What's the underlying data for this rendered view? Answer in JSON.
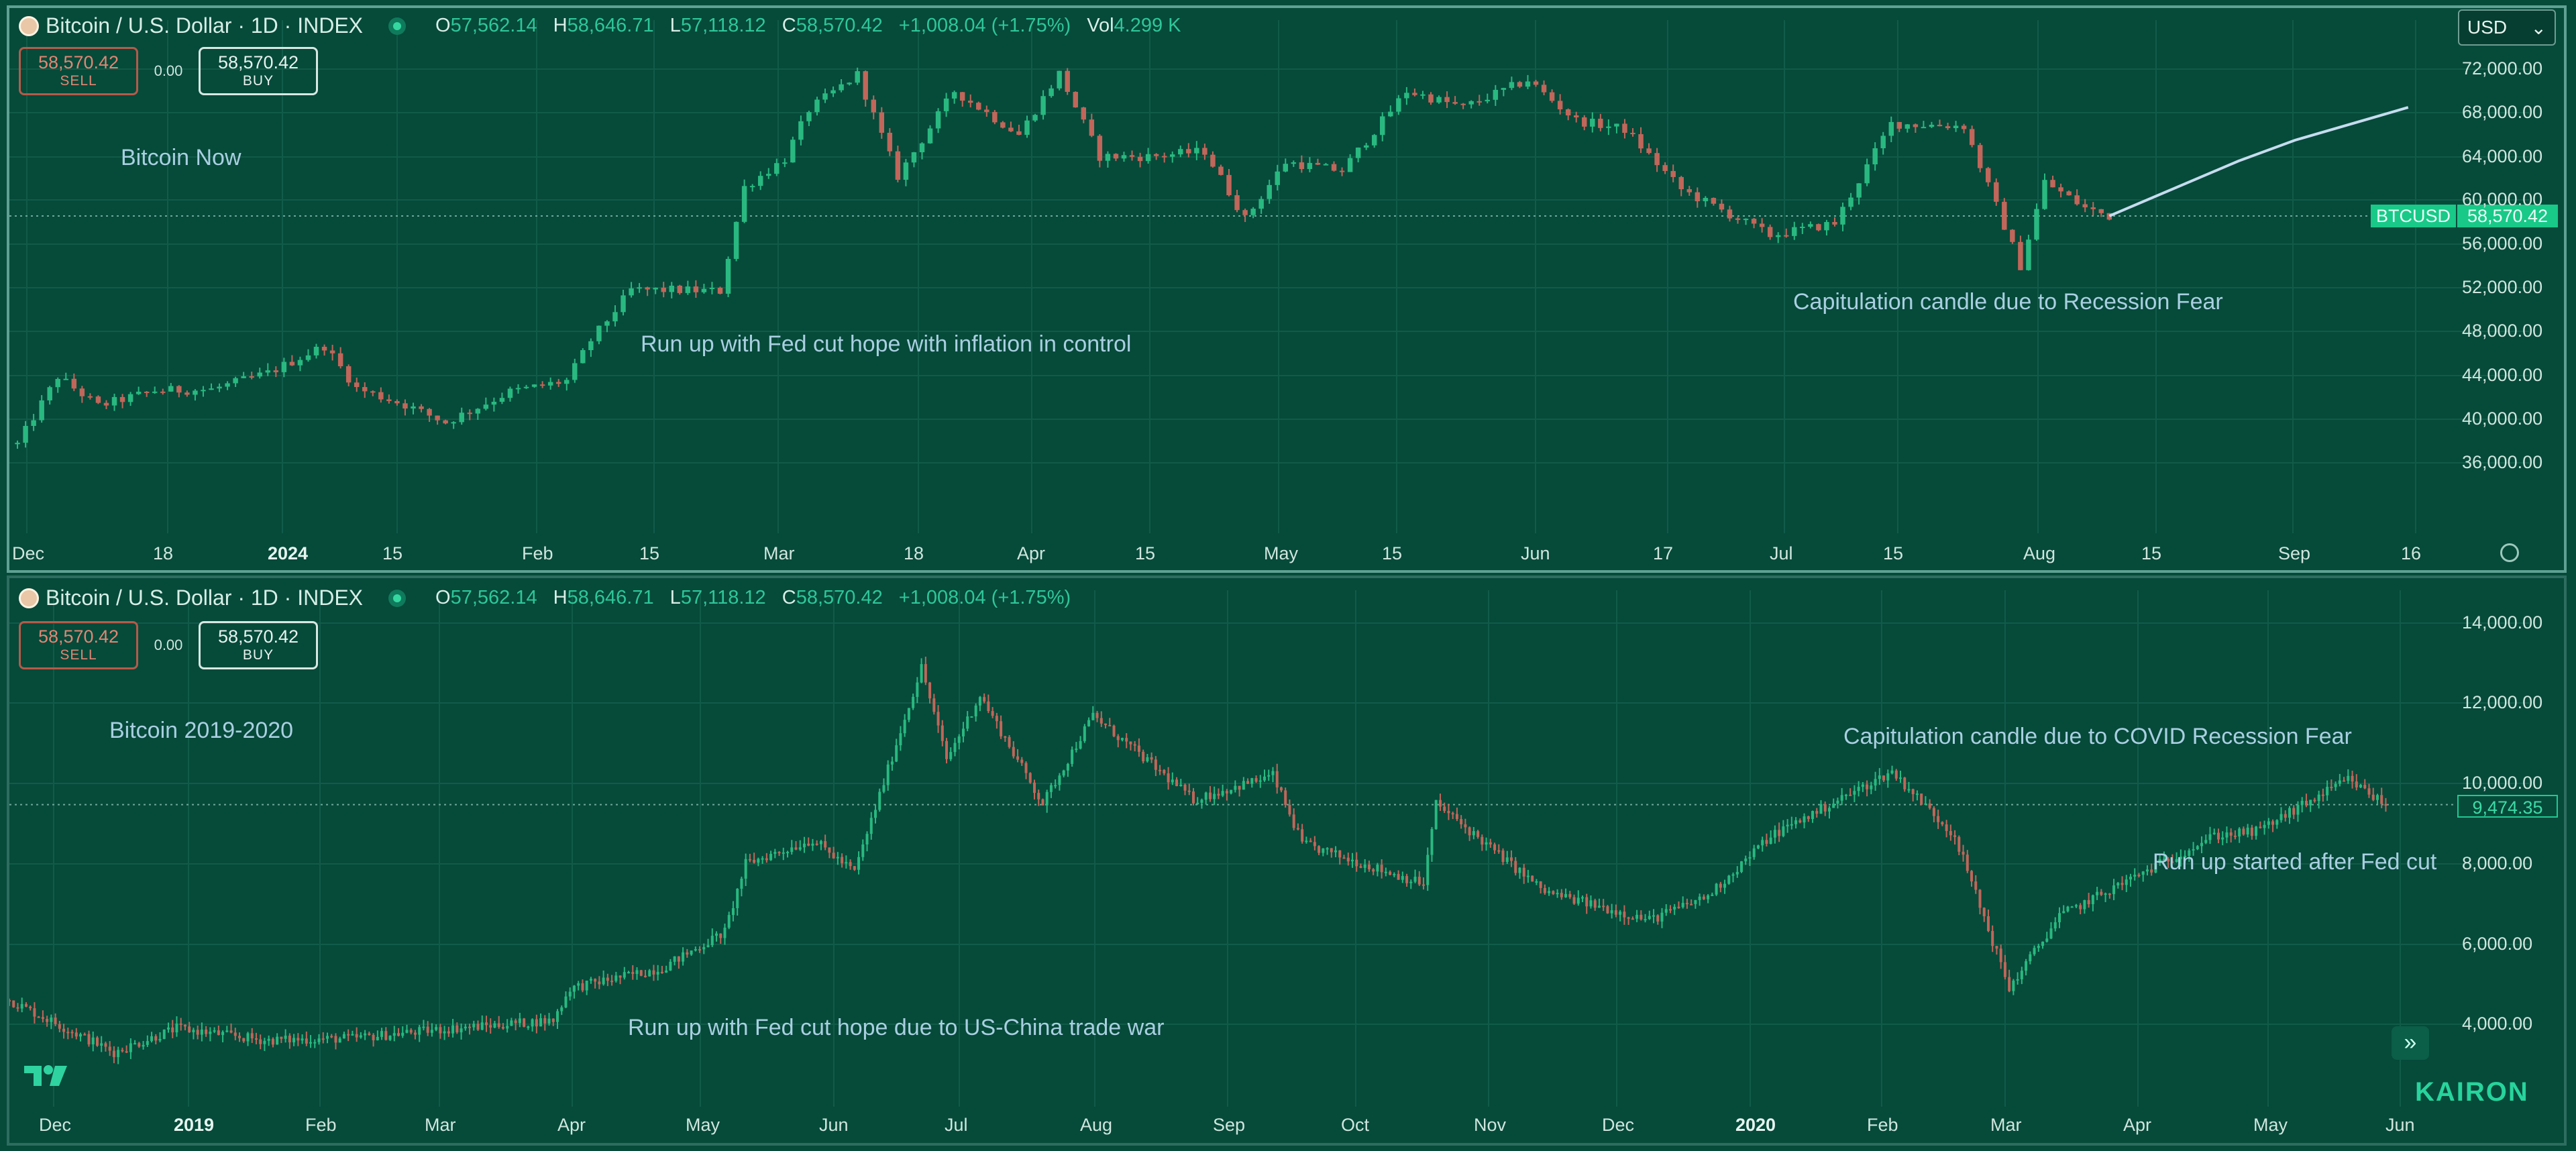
{
  "colors": {
    "bg": "#064a3a",
    "up": "#29b980",
    "down": "#c1665a",
    "grid": "#115b49",
    "forecast": "#c6dcef",
    "note": "#a9cfe1"
  },
  "currency_select": "USD",
  "top": {
    "title": "Bitcoin / U.S. Dollar · 1D · INDEX",
    "ohlc": {
      "o_label": "O",
      "o": "57,562.14",
      "h_label": "H",
      "h": "58,646.71",
      "l_label": "L",
      "l": "57,118.12",
      "c_label": "C",
      "c": "58,570.42",
      "change": "+1,008.04 (+1.75%)",
      "vol_label": "Vol",
      "vol": "4.299 K"
    },
    "sell_price": "58,570.42",
    "sell_label": "SELL",
    "spread": "0.00",
    "buy_price": "58,570.42",
    "buy_label": "BUY",
    "price_tag_symbol": "BTCUSD",
    "price_tag_value": "58,570.42",
    "annotations": [
      {
        "text": "Bitcoin Now"
      },
      {
        "text": "Run up with Fed cut hope with inflation in control"
      },
      {
        "text": "Capitulation candle due to Recession Fear"
      }
    ]
  },
  "bottom": {
    "title": "Bitcoin / U.S. Dollar · 1D · INDEX",
    "ohlc": {
      "o_label": "O",
      "o": "57,562.14",
      "h_label": "H",
      "h": "58,646.71",
      "l_label": "L",
      "l": "57,118.12",
      "c_label": "C",
      "c": "58,570.42",
      "change": "+1,008.04 (+1.75%)"
    },
    "sell_price": "58,570.42",
    "sell_label": "SELL",
    "spread": "0.00",
    "buy_price": "58,570.42",
    "buy_label": "BUY",
    "price_tag_value": "9,474.35",
    "annotations": [
      {
        "text": "Bitcoin 2019-2020"
      },
      {
        "text": "Capitulation candle due to COVID Recession Fear"
      },
      {
        "text": "Run up started after Fed cut"
      },
      {
        "text": "Run up with Fed cut hope due to US-China trade war"
      }
    ]
  },
  "brand": "KAIRON",
  "chart_data": [
    {
      "type": "candlestick",
      "title": "Bitcoin / U.S. Dollar · 1D · INDEX",
      "y_ticks": [
        "36,000.00",
        "40,000.00",
        "44,000.00",
        "48,000.00",
        "52,000.00",
        "56,000.00",
        "60,000.00",
        "64,000.00",
        "68,000.00",
        "72,000.00"
      ],
      "ylim": [
        33500,
        74000
      ],
      "x_ticks": [
        "Dec",
        "18",
        "2024",
        "15",
        "Feb",
        "15",
        "Mar",
        "18",
        "Apr",
        "15",
        "May",
        "15",
        "Jun",
        "17",
        "Jul",
        "15",
        "Aug",
        "15",
        "Sep",
        "16"
      ],
      "last_price": 58570.42,
      "series": [
        {
          "name": "BTCUSD",
          "values": [
            {
              "x": "2023-12-01",
              "c": 37700
            },
            {
              "x": "2023-12-06",
              "c": 43900
            },
            {
              "x": "2023-12-11",
              "c": 41200
            },
            {
              "x": "2023-12-18",
              "c": 42600
            },
            {
              "x": "2023-12-25",
              "c": 42700
            },
            {
              "x": "2024-01-01",
              "c": 44200
            },
            {
              "x": "2024-01-08",
              "c": 46700
            },
            {
              "x": "2024-01-12",
              "c": 42800
            },
            {
              "x": "2024-01-18",
              "c": 41300
            },
            {
              "x": "2024-01-23",
              "c": 39700
            },
            {
              "x": "2024-01-31",
              "c": 42500
            },
            {
              "x": "2024-02-07",
              "c": 43500
            },
            {
              "x": "2024-02-10",
              "c": 47200
            },
            {
              "x": "2024-02-15",
              "c": 51800
            },
            {
              "x": "2024-02-20",
              "c": 51800
            },
            {
              "x": "2024-02-26",
              "c": 51700
            },
            {
              "x": "2024-02-29",
              "c": 61200
            },
            {
              "x": "2024-03-05",
              "c": 63800
            },
            {
              "x": "2024-03-08",
              "c": 68300
            },
            {
              "x": "2024-03-14",
              "c": 71500
            },
            {
              "x": "2024-03-19",
              "c": 62200
            },
            {
              "x": "2024-03-26",
              "c": 70000
            },
            {
              "x": "2024-04-03",
              "c": 66000
            },
            {
              "x": "2024-04-08",
              "c": 71600
            },
            {
              "x": "2024-04-13",
              "c": 64000
            },
            {
              "x": "2024-04-19",
              "c": 64000
            },
            {
              "x": "2024-04-26",
              "c": 64500
            },
            {
              "x": "2024-05-01",
              "c": 58300
            },
            {
              "x": "2024-05-06",
              "c": 63500
            },
            {
              "x": "2024-05-13",
              "c": 62700
            },
            {
              "x": "2024-05-21",
              "c": 70000
            },
            {
              "x": "2024-05-28",
              "c": 68500
            },
            {
              "x": "2024-06-05",
              "c": 71000
            },
            {
              "x": "2024-06-11",
              "c": 67300
            },
            {
              "x": "2024-06-17",
              "c": 66500
            },
            {
              "x": "2024-06-24",
              "c": 61000
            },
            {
              "x": "2024-07-05",
              "c": 56800
            },
            {
              "x": "2024-07-13",
              "c": 57900
            },
            {
              "x": "2024-07-20",
              "c": 67000
            },
            {
              "x": "2024-07-29",
              "c": 66800
            },
            {
              "x": "2024-08-05",
              "c": 54000
            },
            {
              "x": "2024-08-08",
              "c": 61700
            },
            {
              "x": "2024-08-13",
              "c": 59300
            },
            {
              "x": "2024-08-16",
              "c": 58570
            }
          ]
        }
      ],
      "forecast_path": [
        {
          "x": "2024-08-16",
          "y": 58570
        },
        {
          "x": "2024-09-01",
          "y": 63600
        },
        {
          "x": "2024-09-08",
          "y": 65500
        },
        {
          "x": "2024-09-22",
          "y": 68500
        }
      ]
    },
    {
      "type": "candlestick",
      "title": "Bitcoin / U.S. Dollar · 1D · INDEX",
      "y_ticks": [
        "4,000.00",
        "6,000.00",
        "8,000.00",
        "10,000.00",
        "12,000.00",
        "14,000.00"
      ],
      "ylim": [
        3000,
        14600
      ],
      "x_ticks": [
        "Dec",
        "2019",
        "Feb",
        "Mar",
        "Apr",
        "May",
        "Jun",
        "Jul",
        "Aug",
        "Sep",
        "Oct",
        "Nov",
        "Dec",
        "2020",
        "Feb",
        "Mar",
        "Apr",
        "May",
        "Jun"
      ],
      "last_price": 9474.35,
      "series": [
        {
          "name": "BTCUSD",
          "values": [
            {
              "x": "2018-11-20",
              "c": 4600
            },
            {
              "x": "2018-12-15",
              "c": 3300
            },
            {
              "x": "2018-12-30",
              "c": 3900
            },
            {
              "x": "2019-01-20",
              "c": 3600
            },
            {
              "x": "2019-02-10",
              "c": 3650
            },
            {
              "x": "2019-03-01",
              "c": 3850
            },
            {
              "x": "2019-03-30",
              "c": 4100
            },
            {
              "x": "2019-04-03",
              "c": 4900
            },
            {
              "x": "2019-04-25",
              "c": 5400
            },
            {
              "x": "2019-05-10",
              "c": 6300
            },
            {
              "x": "2019-05-15",
              "c": 8000
            },
            {
              "x": "2019-05-31",
              "c": 8600
            },
            {
              "x": "2019-06-10",
              "c": 7800
            },
            {
              "x": "2019-06-26",
              "c": 12900
            },
            {
              "x": "2019-07-02",
              "c": 10600
            },
            {
              "x": "2019-07-10",
              "c": 12200
            },
            {
              "x": "2019-07-25",
              "c": 9500
            },
            {
              "x": "2019-08-06",
              "c": 11700
            },
            {
              "x": "2019-08-30",
              "c": 9600
            },
            {
              "x": "2019-09-18",
              "c": 10200
            },
            {
              "x": "2019-09-25",
              "c": 8500
            },
            {
              "x": "2019-10-24",
              "c": 7500
            },
            {
              "x": "2019-10-27",
              "c": 9500
            },
            {
              "x": "2019-11-22",
              "c": 7300
            },
            {
              "x": "2019-12-17",
              "c": 6600
            },
            {
              "x": "2019-12-31",
              "c": 7200
            },
            {
              "x": "2020-01-15",
              "c": 8700
            },
            {
              "x": "2020-02-13",
              "c": 10300
            },
            {
              "x": "2020-02-28",
              "c": 8700
            },
            {
              "x": "2020-03-12",
              "c": 4900
            },
            {
              "x": "2020-03-24",
              "c": 6700
            },
            {
              "x": "2020-04-30",
              "c": 8700
            },
            {
              "x": "2020-05-10",
              "c": 8800
            },
            {
              "x": "2020-06-01",
              "c": 10100
            },
            {
              "x": "2020-06-10",
              "c": 9474
            }
          ]
        }
      ]
    }
  ]
}
